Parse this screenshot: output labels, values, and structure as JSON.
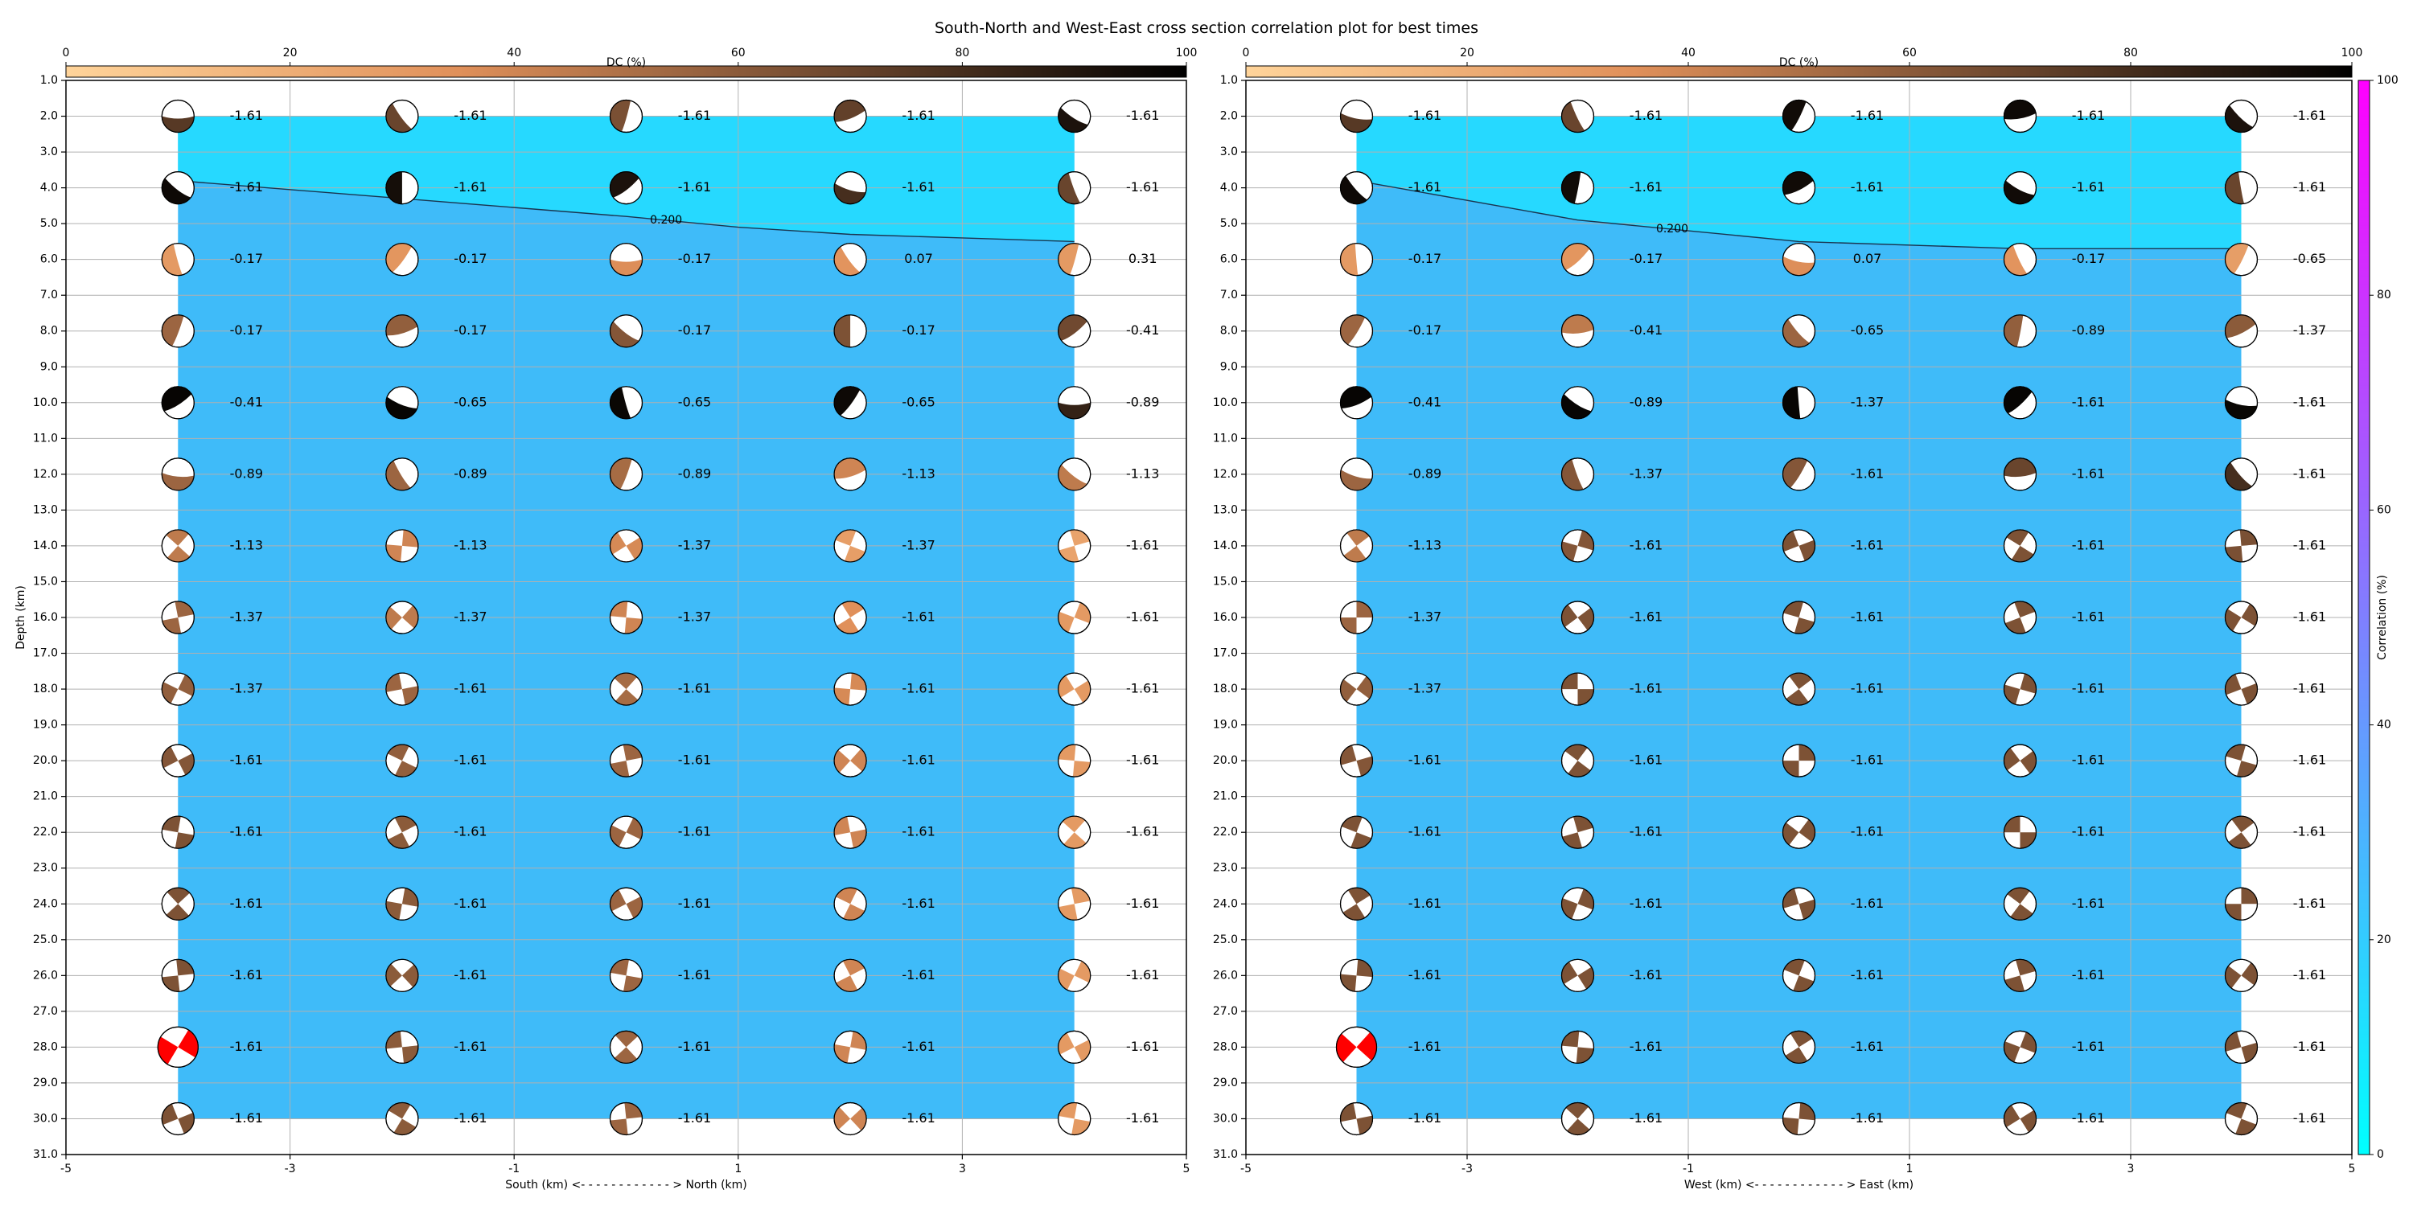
{
  "title": "South-North and West-East cross section correlation plot for best times",
  "chart_data": [
    {
      "type": "scatter",
      "panel": "south-north",
      "xlabel": "South (km) <- - - - - - - - - - - - > North (km)",
      "ylabel": "Depth (km)",
      "xlim": [
        -5,
        5
      ],
      "ylim": [
        31.0,
        1.0
      ],
      "y_inverted": true,
      "grid": true,
      "x_ticks": [
        "-5",
        "-3",
        "-1",
        "1",
        "3",
        "5"
      ],
      "y_ticks": [
        "1.0",
        "2.0",
        "3.0",
        "4.0",
        "5.0",
        "6.0",
        "7.0",
        "8.0",
        "9.0",
        "10.0",
        "11.0",
        "12.0",
        "13.0",
        "14.0",
        "15.0",
        "16.0",
        "17.0",
        "18.0",
        "19.0",
        "20.0",
        "21.0",
        "22.0",
        "23.0",
        "24.0",
        "25.0",
        "26.0",
        "27.0",
        "28.0",
        "29.0",
        "30.0",
        "31.0"
      ],
      "x": [
        -4,
        -2,
        0,
        2,
        4
      ],
      "depths": [
        2,
        4,
        6,
        8,
        10,
        12,
        14,
        16,
        18,
        20,
        22,
        24,
        26,
        28,
        30
      ],
      "labels": [
        [
          "-1.61",
          "-1.61",
          "-1.61",
          "-1.61",
          "-1.61"
        ],
        [
          "-1.61",
          "-1.61",
          "-1.61",
          "-1.61",
          "-1.61"
        ],
        [
          "-0.17",
          "-0.17",
          "-0.17",
          "0.07",
          "0.31"
        ],
        [
          "-0.17",
          "-0.17",
          "-0.17",
          "-0.17",
          "-0.41"
        ],
        [
          "-0.41",
          "-0.65",
          "-0.65",
          "-0.65",
          "-0.89"
        ],
        [
          "-0.89",
          "-0.89",
          "-0.89",
          "-1.13",
          "-1.13"
        ],
        [
          "-1.13",
          "-1.13",
          "-1.37",
          "-1.37",
          "-1.61"
        ],
        [
          "-1.37",
          "-1.37",
          "-1.37",
          "-1.61",
          "-1.61"
        ],
        [
          "-1.37",
          "-1.61",
          "-1.61",
          "-1.61",
          "-1.61"
        ],
        [
          "-1.61",
          "-1.61",
          "-1.61",
          "-1.61",
          "-1.61"
        ],
        [
          "-1.61",
          "-1.61",
          "-1.61",
          "-1.61",
          "-1.61"
        ],
        [
          "-1.61",
          "-1.61",
          "-1.61",
          "-1.61",
          "-1.61"
        ],
        [
          "-1.61",
          "-1.61",
          "-1.61",
          "-1.61",
          "-1.61"
        ],
        [
          "-1.61",
          "-1.61",
          "-1.61",
          "-1.61",
          "-1.61"
        ],
        [
          "-1.61",
          "-1.61",
          "-1.61",
          "-1.61",
          "-1.61"
        ]
      ],
      "dc_percent": [
        [
          75,
          70,
          65,
          72,
          92
        ],
        [
          96,
          94,
          92,
          80,
          70
        ],
        [
          30,
          32,
          36,
          33,
          30
        ],
        [
          55,
          58,
          62,
          64,
          68
        ],
        [
          98,
          98,
          97,
          96,
          85
        ],
        [
          55,
          55,
          52,
          40,
          45
        ],
        [
          45,
          40,
          38,
          28,
          25
        ],
        [
          55,
          45,
          40,
          35,
          30
        ],
        [
          58,
          55,
          52,
          38,
          30
        ],
        [
          62,
          58,
          55,
          40,
          30
        ],
        [
          64,
          60,
          55,
          40,
          30
        ],
        [
          64,
          60,
          55,
          40,
          30
        ],
        [
          64,
          60,
          55,
          40,
          30
        ],
        [
          64,
          60,
          55,
          40,
          30
        ],
        [
          64,
          60,
          55,
          40,
          30
        ]
      ],
      "best_solution": {
        "x": -4,
        "depth": 28,
        "color": "#ff0000"
      },
      "contour": {
        "level_label": "0.200",
        "x": [
          -4,
          -2,
          0,
          1,
          2,
          3,
          4
        ],
        "depth": [
          3.8,
          4.3,
          4.8,
          5.1,
          5.3,
          5.4,
          5.5
        ]
      },
      "field_colors": {
        "upper": "#26d9ff",
        "lower": "#3fbbf9"
      },
      "dc_colorbar": {
        "label": "DC (%)",
        "ticks": [
          "0",
          "20",
          "40",
          "60",
          "80",
          "100"
        ],
        "range": [
          0,
          100
        ]
      }
    },
    {
      "type": "scatter",
      "panel": "west-east",
      "xlabel": "West (km) <- - - - - - - - - - - - > East (km)",
      "ylabel": "",
      "xlim": [
        -5,
        5
      ],
      "ylim": [
        31.0,
        1.0
      ],
      "y_inverted": true,
      "grid": true,
      "x_ticks": [
        "-5",
        "-3",
        "-1",
        "1",
        "3",
        "5"
      ],
      "y_ticks": [
        "1.0",
        "2.0",
        "3.0",
        "4.0",
        "5.0",
        "6.0",
        "7.0",
        "8.0",
        "9.0",
        "10.0",
        "11.0",
        "12.0",
        "13.0",
        "14.0",
        "15.0",
        "16.0",
        "17.0",
        "18.0",
        "19.0",
        "20.0",
        "21.0",
        "22.0",
        "23.0",
        "24.0",
        "25.0",
        "26.0",
        "27.0",
        "28.0",
        "29.0",
        "30.0",
        "31.0"
      ],
      "x": [
        -4,
        -2,
        0,
        2,
        4
      ],
      "depths": [
        2,
        4,
        6,
        8,
        10,
        12,
        14,
        16,
        18,
        20,
        22,
        24,
        26,
        28,
        30
      ],
      "labels": [
        [
          "-1.61",
          "-1.61",
          "-1.61",
          "-1.61",
          "-1.61"
        ],
        [
          "-1.61",
          "-1.61",
          "-1.61",
          "-1.61",
          "-1.61"
        ],
        [
          "-0.17",
          "-0.17",
          "0.07",
          "-0.17",
          "-0.65"
        ],
        [
          "-0.17",
          "-0.41",
          "-0.65",
          "-0.89",
          "-1.37"
        ],
        [
          "-0.41",
          "-0.89",
          "-1.37",
          "-1.61",
          "-1.61"
        ],
        [
          "-0.89",
          "-1.37",
          "-1.61",
          "-1.61",
          "-1.61"
        ],
        [
          "-1.13",
          "-1.61",
          "-1.61",
          "-1.61",
          "-1.61"
        ],
        [
          "-1.37",
          "-1.61",
          "-1.61",
          "-1.61",
          "-1.61"
        ],
        [
          "-1.37",
          "-1.61",
          "-1.61",
          "-1.61",
          "-1.61"
        ],
        [
          "-1.61",
          "-1.61",
          "-1.61",
          "-1.61",
          "-1.61"
        ],
        [
          "-1.61",
          "-1.61",
          "-1.61",
          "-1.61",
          "-1.61"
        ],
        [
          "-1.61",
          "-1.61",
          "-1.61",
          "-1.61",
          "-1.61"
        ],
        [
          "-1.61",
          "-1.61",
          "-1.61",
          "-1.61",
          "-1.61"
        ],
        [
          "-1.61",
          "-1.61",
          "-1.61",
          "-1.61",
          "-1.61"
        ],
        [
          "-1.61",
          "-1.61",
          "-1.61",
          "-1.61",
          "-1.61"
        ]
      ],
      "dc_percent": [
        [
          75,
          70,
          95,
          96,
          92
        ],
        [
          96,
          95,
          95,
          95,
          70
        ],
        [
          30,
          32,
          36,
          33,
          28
        ],
        [
          55,
          45,
          55,
          58,
          60
        ],
        [
          98,
          98,
          98,
          98,
          97
        ],
        [
          55,
          62,
          62,
          70,
          80
        ],
        [
          45,
          62,
          64,
          64,
          65
        ],
        [
          55,
          64,
          64,
          64,
          64
        ],
        [
          58,
          64,
          64,
          64,
          64
        ],
        [
          62,
          64,
          64,
          64,
          64
        ],
        [
          64,
          64,
          64,
          64,
          64
        ],
        [
          64,
          64,
          64,
          64,
          64
        ],
        [
          64,
          64,
          64,
          64,
          64
        ],
        [
          64,
          64,
          64,
          64,
          64
        ],
        [
          64,
          64,
          64,
          64,
          64
        ]
      ],
      "best_solution": {
        "x": -4,
        "depth": 28,
        "color": "#ff0000"
      },
      "contour": {
        "level_label": "0.200",
        "x": [
          -4,
          -2,
          0,
          2,
          4
        ],
        "depth": [
          3.8,
          4.9,
          5.5,
          5.7,
          5.7
        ]
      },
      "field_colors": {
        "upper": "#26d9ff",
        "lower": "#3fbbf9"
      },
      "dc_colorbar": {
        "label": "DC (%)",
        "ticks": [
          "0",
          "20",
          "40",
          "60",
          "80",
          "100"
        ],
        "range": [
          0,
          100
        ]
      },
      "correlation_colorbar": {
        "label": "Correlation (%)",
        "ticks": [
          "0",
          "20",
          "40",
          "60",
          "80",
          "100"
        ],
        "range": [
          0,
          100
        ]
      }
    }
  ],
  "colors": {
    "dc_low": "#ffd49a",
    "dc_mid": "#e0905a",
    "dc_mid2": "#7a5034",
    "dc_high": "#000000",
    "correlation_low": "#00ffff",
    "correlation_high": "#ff00ff",
    "grid": "#b0b0b0",
    "best": "#ff0000"
  }
}
